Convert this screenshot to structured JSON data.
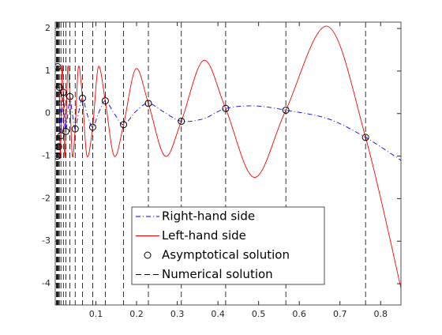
{
  "chart_data": {
    "type": "line",
    "xlim": [
      0,
      0.85
    ],
    "ylim": [
      -4.5,
      2.15
    ],
    "xticks": [
      0.1,
      0.2,
      0.3,
      0.4,
      0.5,
      0.6,
      0.7,
      0.8
    ],
    "yticks": [
      -4,
      -3,
      -2,
      -1,
      0,
      1,
      2
    ],
    "legend": "south",
    "x": [
      0.01,
      0.012,
      0.014,
      0.017,
      0.02,
      0.023,
      0.026,
      0.031,
      0.036,
      0.042,
      0.049,
      0.057,
      0.067,
      0.078,
      0.092,
      0.106,
      0.123,
      0.145,
      0.168,
      0.198,
      0.229,
      0.27,
      0.31,
      0.365,
      0.419,
      0.49,
      0.567,
      0.67,
      0.763,
      0.85
    ],
    "series": [
      {
        "name": "Right-hand side",
        "color": "#0000ff",
        "style": "dash-dot",
        "values": [
          0.62,
          0.0,
          -0.52,
          0.0,
          0.5,
          0.0,
          -0.42,
          0.0,
          0.4,
          0.0,
          -0.36,
          0.0,
          0.36,
          0.0,
          -0.32,
          0.0,
          0.3,
          0.0,
          -0.26,
          0.05,
          0.24,
          0.02,
          -0.18,
          -0.12,
          0.12,
          0.18,
          0.08,
          -0.12,
          -0.56,
          -1.1
        ]
      },
      {
        "name": "Left-hand side",
        "color": "#ff0000",
        "style": "solid",
        "values": [
          0.62,
          -1.0,
          -0.52,
          1.1,
          0.5,
          -1.0,
          -0.42,
          1.1,
          0.4,
          -1.0,
          -0.36,
          1.1,
          0.36,
          -1.0,
          -0.32,
          1.1,
          0.3,
          -1.0,
          -0.26,
          1.05,
          0.24,
          -1.0,
          -0.18,
          1.25,
          0.12,
          -1.5,
          0.08,
          2.05,
          -0.56,
          -4.1
        ]
      },
      {
        "name": "Asymptotical solution",
        "color": "#000000",
        "style": "circle",
        "x": [
          0.005,
          0.006,
          0.008,
          0.01,
          0.014,
          0.02,
          0.026,
          0.036,
          0.049,
          0.067,
          0.092,
          0.123,
          0.168,
          0.229,
          0.31,
          0.419,
          0.567,
          0.763
        ],
        "values": [
          -1.0,
          1.1,
          -0.78,
          0.62,
          -0.52,
          0.5,
          -0.42,
          0.4,
          -0.36,
          0.36,
          -0.32,
          0.3,
          -0.26,
          0.24,
          -0.18,
          0.12,
          0.08,
          -0.56
        ]
      },
      {
        "name": "Numerical solution",
        "color": "#000000",
        "style": "vline-dashed",
        "x": [
          0.003,
          0.004,
          0.005,
          0.006,
          0.008,
          0.01,
          0.014,
          0.02,
          0.026,
          0.036,
          0.049,
          0.067,
          0.092,
          0.123,
          0.168,
          0.229,
          0.31,
          0.419,
          0.567,
          0.763
        ]
      }
    ]
  }
}
